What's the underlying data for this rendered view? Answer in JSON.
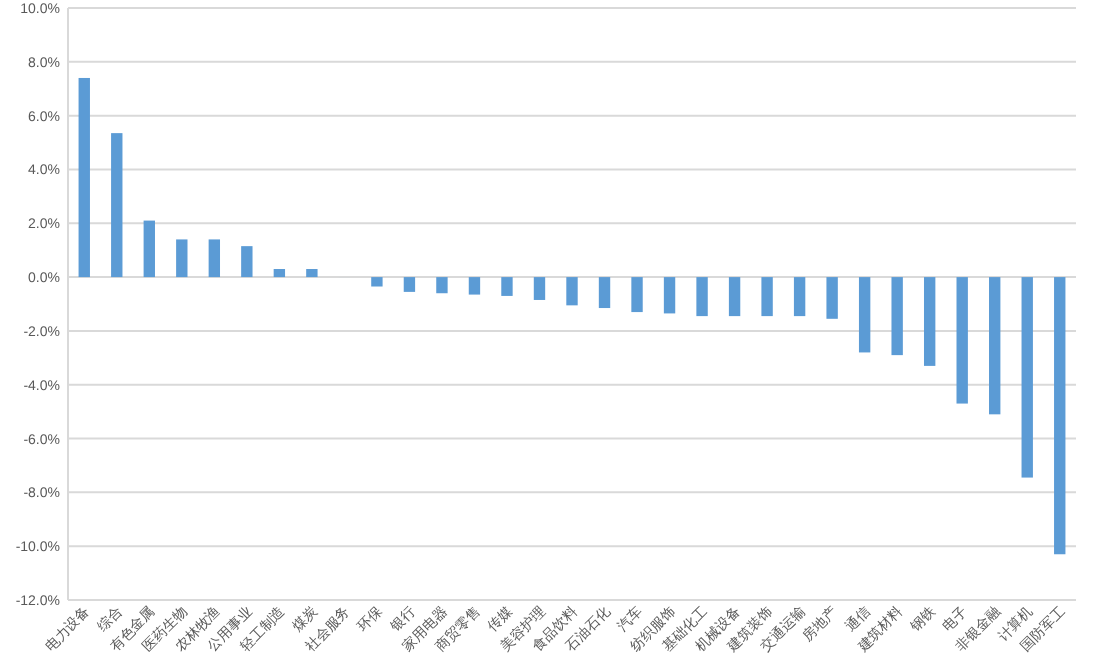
{
  "chart_data": {
    "type": "bar",
    "categories": [
      "电力设备",
      "综合",
      "有色金属",
      "医药生物",
      "农林牧渔",
      "公用事业",
      "轻工制造",
      "煤炭",
      "社会服务",
      "环保",
      "银行",
      "家用电器",
      "商贸零售",
      "传媒",
      "美容护理",
      "食品饮料",
      "石油石化",
      "汽车",
      "纺织服饰",
      "基础化工",
      "机械设备",
      "建筑装饰",
      "交通运输",
      "房地产",
      "通信",
      "建筑材料",
      "钢铁",
      "电子",
      "非银金融",
      "计算机",
      "国防军工"
    ],
    "series": [
      {
        "color": "#5b9bd5",
        "values": [
          7.4,
          5.35,
          2.1,
          1.4,
          1.4,
          1.15,
          0.3,
          0.3,
          0,
          -0.35,
          -0.55,
          -0.6,
          -0.65,
          -0.7,
          -0.85,
          -1.05,
          -1.15,
          -1.3,
          -1.35,
          -1.45,
          -1.45,
          -1.45,
          -1.45,
          -1.55,
          -2.8,
          -2.9,
          -3.3,
          -4.7,
          -5.1,
          -7.45,
          -10.3
        ]
      }
    ],
    "ylim": [
      -12,
      10
    ],
    "yticks": [
      {
        "value": 10,
        "label": "10.0%"
      },
      {
        "value": 8,
        "label": "8.0%"
      },
      {
        "value": 6,
        "label": "6.0%"
      },
      {
        "value": 4,
        "label": "4.0%"
      },
      {
        "value": 2,
        "label": "2.0%"
      },
      {
        "value": 0,
        "label": "0.0%"
      },
      {
        "value": -2,
        "label": "-2.0%"
      },
      {
        "value": -4,
        "label": "-4.0%"
      },
      {
        "value": -6,
        "label": "-6.0%"
      },
      {
        "value": -8,
        "label": "-8.0%"
      },
      {
        "value": -10,
        "label": "-10.0%"
      },
      {
        "value": -12,
        "label": "-12.0%"
      }
    ],
    "grid": "y"
  }
}
